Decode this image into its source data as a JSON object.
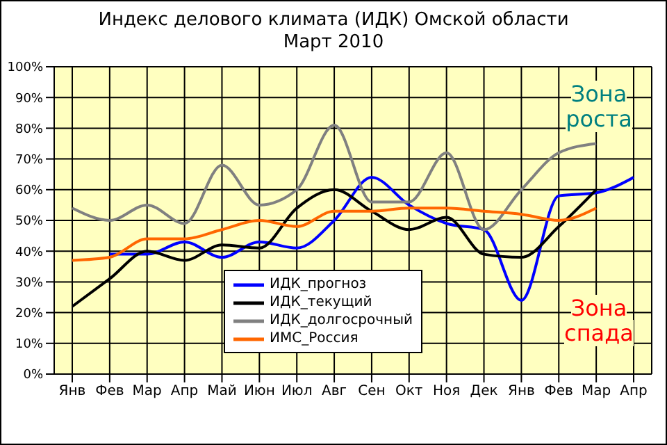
{
  "chart_data": {
    "type": "line",
    "title": "Индекс делового климата (ИДК) Омской области",
    "subtitle": "Март 2010",
    "categories": [
      "Янв",
      "Фев",
      "Мар",
      "Апр",
      "Май",
      "Июн",
      "Июл",
      "Авг",
      "Сен",
      "Окт",
      "Ноя",
      "Дек",
      "Янв",
      "Фев",
      "Мар",
      "Апр"
    ],
    "series": [
      {
        "name": "ИДК_прогноз",
        "color": "#0000ff",
        "values": [
          null,
          39,
          39,
          43,
          38,
          43,
          41,
          50,
          64,
          55,
          49,
          47,
          24,
          58,
          59,
          64
        ]
      },
      {
        "name": "ИДК_текущий",
        "color": "#000000",
        "values": [
          22,
          31,
          40,
          37,
          42,
          41,
          54,
          60,
          53,
          47,
          51,
          39,
          38,
          48,
          60,
          null
        ]
      },
      {
        "name": "ИДК_долгосрочный",
        "color": "#808080",
        "values": [
          54,
          50,
          55,
          49,
          68,
          55,
          60,
          81,
          56,
          56,
          72,
          47,
          60,
          72,
          75,
          null
        ]
      },
      {
        "name": "ИМС_Россия",
        "color": "#ff6600",
        "values": [
          37,
          38,
          44,
          44,
          47,
          50,
          48,
          53,
          53,
          54,
          54,
          53,
          52,
          50,
          54,
          null
        ]
      }
    ],
    "ylim": [
      0,
      100
    ],
    "yticks": [
      {
        "value": 0,
        "label": "0%"
      },
      {
        "value": 10,
        "label": "10%"
      },
      {
        "value": 20,
        "label": "20%"
      },
      {
        "value": 30,
        "label": "30%"
      },
      {
        "value": 40,
        "label": "40%"
      },
      {
        "value": 50,
        "label": "50%"
      },
      {
        "value": 60,
        "label": "60%"
      },
      {
        "value": 70,
        "label": "70%"
      },
      {
        "value": 80,
        "label": "80%"
      },
      {
        "value": 90,
        "label": "90%"
      },
      {
        "value": 100,
        "label": "100%"
      }
    ],
    "annotations": [
      "Зона роста",
      "Зона спада"
    ],
    "grid": true,
    "legend": "bottom",
    "marker": "none",
    "line_style": "solid"
  }
}
